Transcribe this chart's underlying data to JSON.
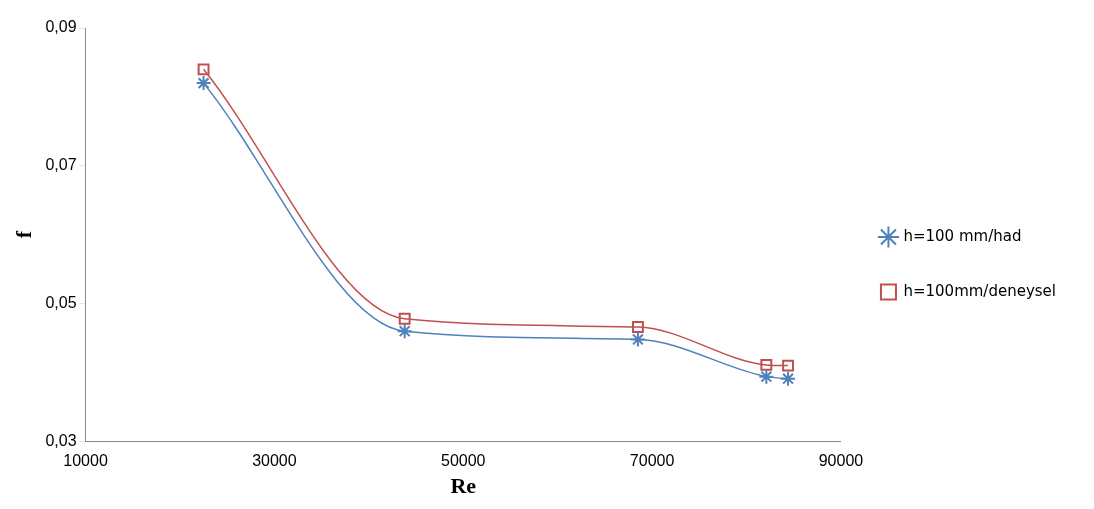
{
  "chart_data": {
    "type": "line",
    "xlabel": "Re",
    "ylabel": "f",
    "x": [
      22500,
      43800,
      68500,
      82100,
      84400
    ],
    "xlim": [
      10000,
      90000
    ],
    "xticks": [
      10000,
      30000,
      50000,
      70000,
      90000
    ],
    "ylim": [
      0.03,
      0.09
    ],
    "yticks": [
      {
        "value": 0.03,
        "label": "0,03"
      },
      {
        "value": 0.05,
        "label": "0,05"
      },
      {
        "value": 0.07,
        "label": "0,07"
      },
      {
        "value": 0.09,
        "label": "0,09"
      }
    ],
    "grid": false,
    "legend": "right",
    "series": [
      {
        "name": "h=100 mm/had",
        "color": "#4f81bd",
        "marker": "cross",
        "values": [
          0.082,
          0.046,
          0.0448,
          0.0394,
          0.0391
        ]
      },
      {
        "name": "h=100mm/deneysel",
        "color": "#c0504d",
        "marker": "square",
        "values": [
          0.084,
          0.0478,
          0.0466,
          0.0411,
          0.041
        ]
      }
    ]
  }
}
